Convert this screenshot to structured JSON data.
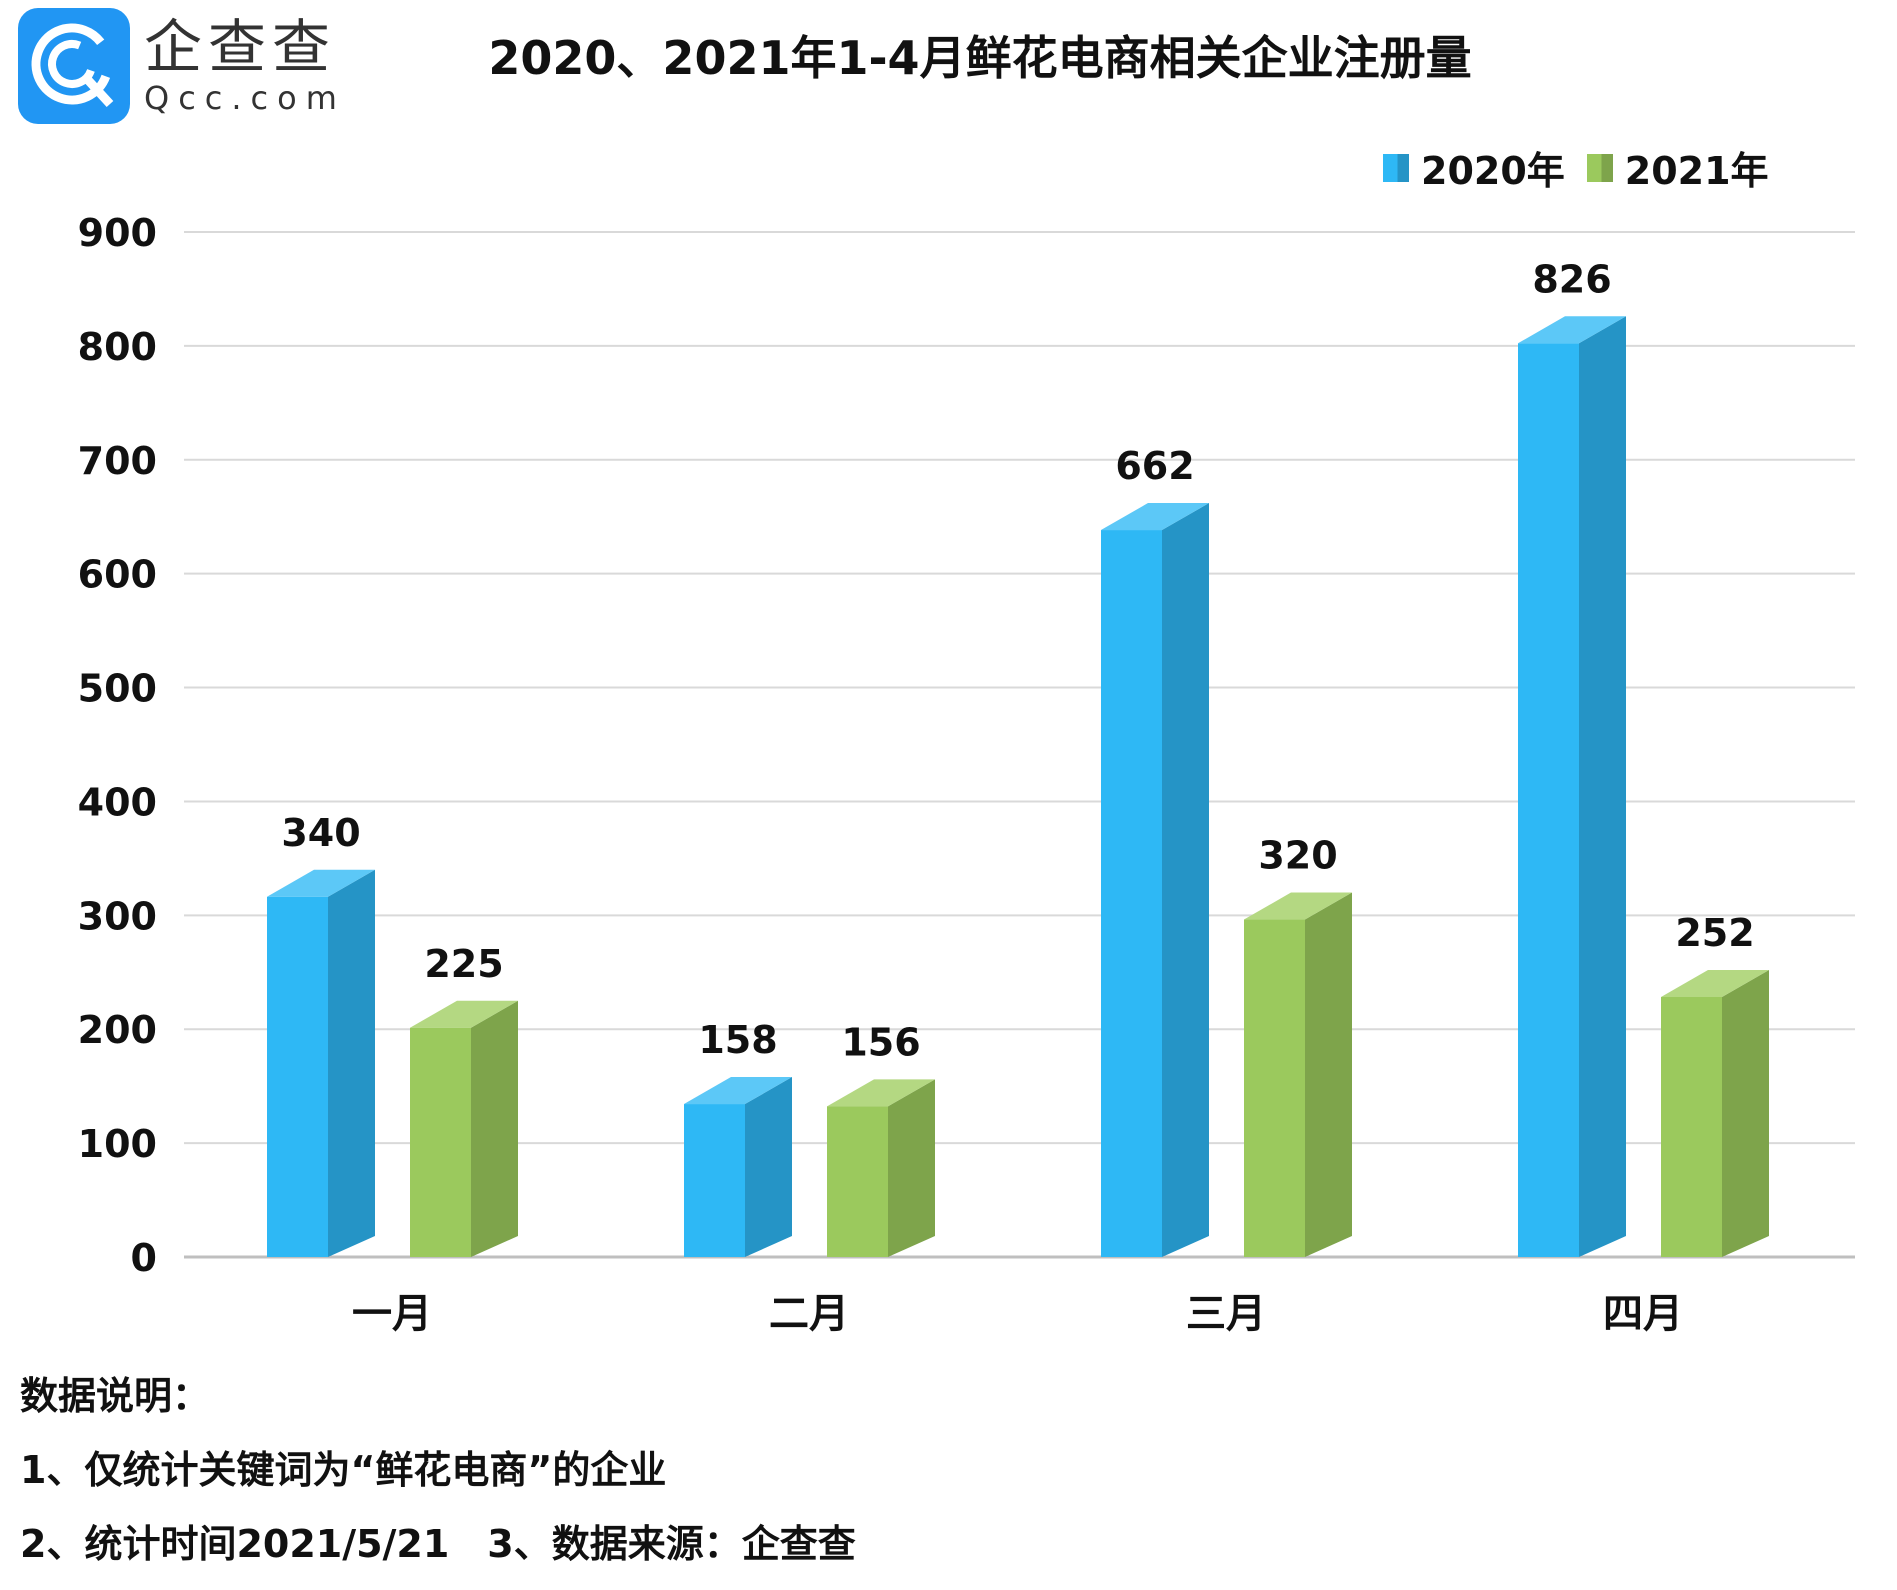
{
  "logo": {
    "name_cn": "企查查",
    "name_en": "Qcc.com"
  },
  "colors": {
    "series_2020": "#2eb8f5",
    "series_2020_side": "#2594c6",
    "series_2020_top": "#5cc8f7",
    "series_2021": "#9bc95d",
    "series_2021_side": "#7ea44b",
    "series_2021_top": "#b4d882",
    "grid": "#d9d9d9"
  },
  "chart_data": {
    "type": "bar",
    "title": "2020、2021年1-4月鲜花电商相关企业注册量",
    "categories": [
      "一月",
      "二月",
      "三月",
      "四月"
    ],
    "series": [
      {
        "name": "2020年",
        "values": [
          340,
          158,
          662,
          826
        ]
      },
      {
        "name": "2021年",
        "values": [
          225,
          156,
          320,
          252
        ]
      }
    ],
    "ylim": [
      0,
      900
    ],
    "yticks": [
      0,
      100,
      200,
      300,
      400,
      500,
      600,
      700,
      800,
      900
    ],
    "grid": true,
    "legend": "top-right",
    "style": "3d-column"
  },
  "notes": {
    "heading": "数据说明：",
    "line1": "1、仅统计关键词为“鲜花电商”的企业",
    "line2": "2、统计时间2021/5/21　3、数据来源：企查查"
  }
}
